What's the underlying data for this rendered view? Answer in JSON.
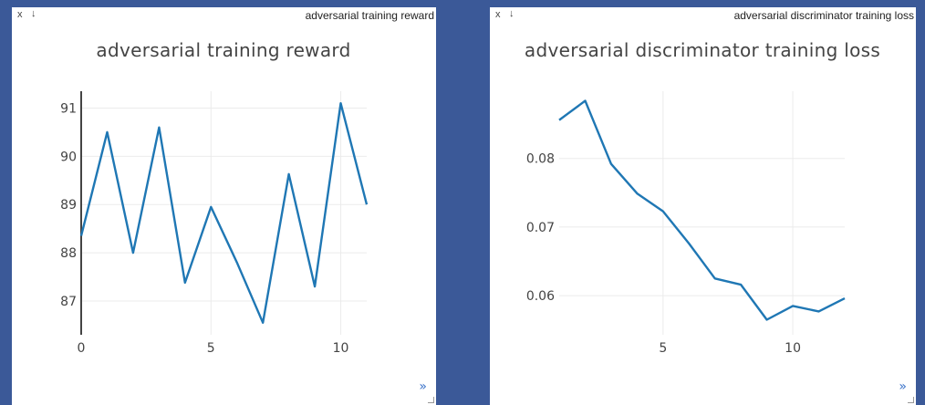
{
  "panels": [
    {
      "window_title": "adversarial training reward",
      "close_glyph": "x",
      "download_glyph": "↓",
      "expand_glyph": "»",
      "chart_data": {
        "type": "line",
        "title": "adversarial training reward",
        "xlabel": "",
        "ylabel": "",
        "x": [
          0,
          1,
          2,
          3,
          4,
          5,
          6,
          7,
          8,
          9,
          10,
          11
        ],
        "series": [
          {
            "values": [
              88.35,
              90.5,
              88.0,
              90.6,
              87.38,
              88.95,
              87.8,
              86.55,
              89.63,
              87.3,
              91.1,
              89.0
            ]
          }
        ],
        "xlim": [
          0,
          11
        ],
        "ylim": [
          86.3,
          91.35
        ],
        "xticks": [
          0,
          5,
          10
        ],
        "yticks": [
          87,
          88,
          89,
          90,
          91
        ],
        "grid": true,
        "line_color": "#1f77b4"
      }
    },
    {
      "window_title": "adversarial discriminator training loss",
      "close_glyph": "x",
      "download_glyph": "↓",
      "expand_glyph": "»",
      "chart_data": {
        "type": "line",
        "title": "adversarial discriminator training loss",
        "xlabel": "",
        "ylabel": "",
        "x": [
          1,
          2,
          3,
          4,
          5,
          6,
          7,
          8,
          9,
          10,
          11,
          12
        ],
        "series": [
          {
            "values": [
              0.0856,
              0.0884,
              0.0792,
              0.0749,
              0.0723,
              0.0676,
              0.0625,
              0.0616,
              0.0565,
              0.0585,
              0.0577,
              0.0596
            ]
          }
        ],
        "xlim": [
          1,
          12
        ],
        "ylim": [
          0.0543,
          0.0898
        ],
        "xticks": [
          5,
          10
        ],
        "yticks": [
          0.06,
          0.07,
          0.08
        ],
        "grid": true,
        "line_color": "#1f77b4"
      }
    }
  ]
}
